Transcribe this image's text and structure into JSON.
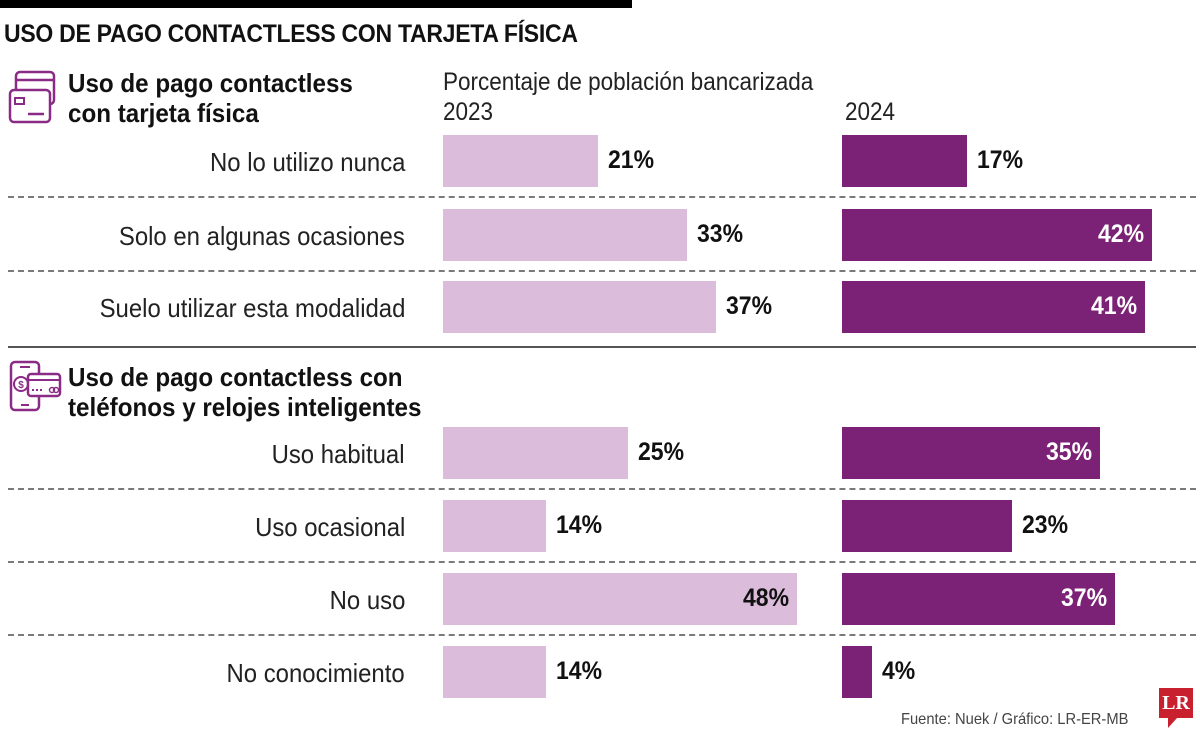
{
  "title": "USO DE PAGO CONTACTLESS CON TARJETA FÍSICA",
  "subtitle": "Porcentaje de población bancarizada",
  "years": [
    "2023",
    "2024"
  ],
  "colors": {
    "y2023": "#dbbcdb",
    "y2024": "#7b2277",
    "logo": "#c8202f"
  },
  "sections": [
    {
      "icon": "credit-card-icon",
      "title_line1": "Uso de pago contactless",
      "title_line2": "con tarjeta física"
    },
    {
      "icon": "phone-payment-icon",
      "title_line1": "Uso de pago contactless con",
      "title_line2": "teléfonos y relojes inteligentes"
    }
  ],
  "source": "Fuente: Nuek / Gráfico: LR-ER-MB",
  "logo": "LR",
  "chart_data": {
    "type": "bar",
    "title": "USO DE PAGO CONTACTLESS CON TARJETA FÍSICA",
    "xlabel": "Porcentaje de población bancarizada",
    "ylabel": "",
    "xlim": [
      0,
      100
    ],
    "grid": false,
    "legend": "top",
    "groups": [
      {
        "name": "Uso de pago contactless con tarjeta física",
        "categories": [
          "No lo utilizo nunca",
          "Solo en algunas ocasiones",
          "Suelo utilizar esta modalidad"
        ],
        "series": [
          {
            "name": "2023",
            "values": [
              21,
              33,
              37
            ],
            "labels": [
              "21%",
              "33%",
              "37%"
            ]
          },
          {
            "name": "2024",
            "values": [
              17,
              42,
              41
            ],
            "labels": [
              "17%",
              "42%",
              "41%"
            ]
          }
        ]
      },
      {
        "name": "Uso de pago contactless con teléfonos y relojes inteligentes",
        "categories": [
          "Uso habitual",
          "Uso ocasional",
          "No uso",
          "No conocimiento"
        ],
        "series": [
          {
            "name": "2023",
            "values": [
              25,
              14,
              48,
              14
            ],
            "labels": [
              "25%",
              "14%",
              "48%",
              "14%"
            ]
          },
          {
            "name": "2024",
            "values": [
              35,
              23,
              37,
              4
            ],
            "labels": [
              "35%",
              "23%",
              "37%",
              "4%"
            ]
          }
        ]
      }
    ]
  }
}
